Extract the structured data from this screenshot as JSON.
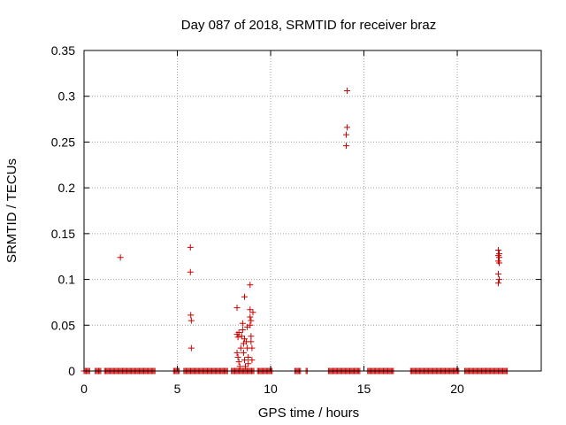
{
  "chart_data": {
    "type": "scatter",
    "title": "Day 087 of 2018, SRMTID for receiver braz",
    "xlabel": "GPS time / hours",
    "ylabel": "SRMTID / TECUs",
    "xlim": [
      0,
      24.5
    ],
    "ylim": [
      0,
      0.35
    ],
    "x_ticks": [
      0,
      5,
      10,
      15,
      20
    ],
    "x_tick_labels": [
      "0",
      "5",
      "10",
      "15",
      "20"
    ],
    "y_ticks": [
      0,
      0.05,
      0.1,
      0.15,
      0.2,
      0.25,
      0.3,
      0.35
    ],
    "y_tick_labels": [
      "0",
      "0.05",
      "0.1",
      "0.15",
      "0.2",
      "0.25",
      "0.3",
      "0.35"
    ],
    "grid": true,
    "marker": "+",
    "color": "#cc0000",
    "series": [
      {
        "name": "SRMTID",
        "points": [
          [
            1.95,
            0.124
          ],
          [
            5.7,
            0.135
          ],
          [
            5.7,
            0.108
          ],
          [
            5.72,
            0.061
          ],
          [
            5.75,
            0.055
          ],
          [
            5.75,
            0.025
          ],
          [
            8.2,
            0.069
          ],
          [
            8.2,
            0.04
          ],
          [
            8.25,
            0.037
          ],
          [
            8.3,
            0.042
          ],
          [
            8.2,
            0.02
          ],
          [
            8.25,
            0.015
          ],
          [
            8.3,
            0.01
          ],
          [
            8.35,
            0.005
          ],
          [
            8.4,
            0.025
          ],
          [
            8.45,
            0.038
          ],
          [
            8.5,
            0.045
          ],
          [
            8.5,
            0.052
          ],
          [
            8.55,
            0.03
          ],
          [
            8.55,
            0.02
          ],
          [
            8.6,
            0.081
          ],
          [
            8.6,
            0.035
          ],
          [
            8.6,
            0.012
          ],
          [
            8.65,
            0.005
          ],
          [
            8.7,
            0.032
          ],
          [
            8.75,
            0.048
          ],
          [
            8.75,
            0.025
          ],
          [
            8.8,
            0.015
          ],
          [
            8.8,
            0.008
          ],
          [
            8.9,
            0.094
          ],
          [
            8.9,
            0.067
          ],
          [
            8.9,
            0.059
          ],
          [
            8.95,
            0.055
          ],
          [
            8.9,
            0.05
          ],
          [
            8.95,
            0.038
          ],
          [
            8.95,
            0.032
          ],
          [
            9.0,
            0.025
          ],
          [
            9.05,
            0.064
          ],
          [
            9.0,
            0.012
          ],
          [
            14.1,
            0.306
          ],
          [
            14.1,
            0.266
          ],
          [
            14.05,
            0.258
          ],
          [
            14.05,
            0.246
          ],
          [
            22.2,
            0.132
          ],
          [
            22.25,
            0.128
          ],
          [
            22.2,
            0.126
          ],
          [
            22.25,
            0.124
          ],
          [
            22.2,
            0.12
          ],
          [
            22.25,
            0.118
          ],
          [
            22.2,
            0.106
          ],
          [
            22.25,
            0.1
          ],
          [
            22.2,
            0.096
          ]
        ],
        "baseline_intervals": [
          [
            0,
            0.3
          ],
          [
            0.6,
            0.9
          ],
          [
            1.1,
            3.8
          ],
          [
            4.8,
            5.1
          ],
          [
            5.35,
            7.7
          ],
          [
            7.9,
            9.1
          ],
          [
            9.3,
            10.1
          ],
          [
            11.3,
            11.6
          ],
          [
            11.9,
            12.0
          ],
          [
            13.1,
            14.8
          ],
          [
            15.2,
            16.6
          ],
          [
            17.5,
            20.1
          ],
          [
            20.4,
            22.7
          ]
        ],
        "baseline_spacing": 0.06
      }
    ]
  }
}
